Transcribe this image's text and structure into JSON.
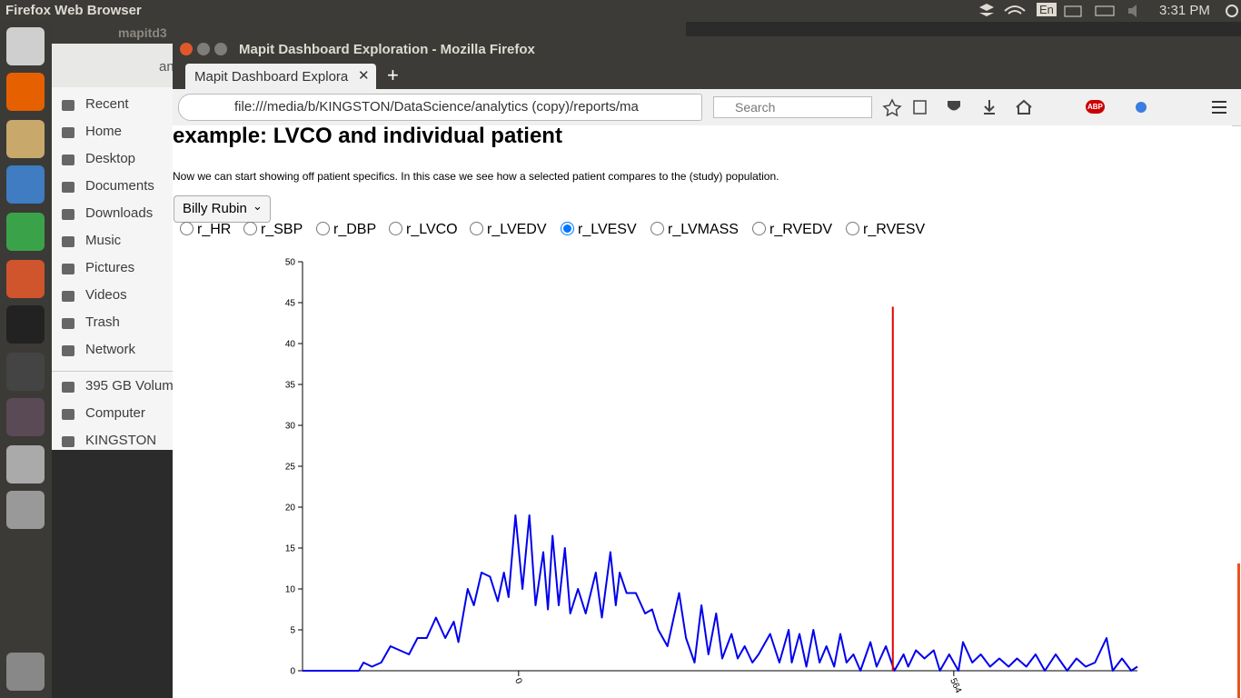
{
  "topbar": {
    "title": "Firefox Web Browser",
    "lang": "En",
    "time": "3:31 PM"
  },
  "files": {
    "title": "mapitd3",
    "path": "an",
    "places": [
      "Recent",
      "Home",
      "Desktop",
      "Documents",
      "Downloads",
      "Music",
      "Pictures",
      "Videos",
      "Trash",
      "Network"
    ],
    "devices": [
      "395 GB Volume",
      "Computer",
      "KINGSTON"
    ]
  },
  "browser": {
    "title": "Mapit Dashboard Exploration - Mozilla Firefox",
    "tab": "Mapit Dashboard Explora",
    "url": "file:///media/b/KINGSTON/DataScience/analytics (copy)/reports/ma",
    "search": "Search",
    "abp": "ABP"
  },
  "page": {
    "heading": "example: LVCO and individual patient",
    "text": "Now we can start showing off patient specifics. In this case we see how a selected patient compares to the (study) population.",
    "select": "Billy Rubin",
    "radios": [
      "r_HR",
      "r_SBP",
      "r_DBP",
      "r_LVCO",
      "r_LVEDV",
      "r_LVESV",
      "r_LVMASS",
      "r_RVEDV",
      "r_RVESV"
    ],
    "selected": 5
  },
  "chart_data": {
    "type": "line",
    "x": [
      -280,
      -207,
      -201,
      -190,
      -178,
      -166,
      -154,
      -142,
      -131,
      -119,
      -107,
      -95,
      -84,
      -78,
      -66,
      -58,
      -48,
      -37,
      -27,
      -19,
      -13,
      -4,
      5,
      14,
      22,
      32,
      38,
      44,
      52,
      60,
      67,
      77,
      87,
      100,
      108,
      119,
      126,
      131,
      140,
      152,
      164,
      173,
      181,
      193,
      208,
      217,
      228,
      237,
      246,
      256,
      264,
      276,
      284,
      293,
      303,
      311,
      326,
      338,
      350,
      354,
      364,
      373,
      382,
      390,
      399,
      409,
      417,
      425,
      434,
      443,
      456,
      464,
      476,
      487,
      499,
      505,
      515,
      526,
      538,
      546,
      558,
      570,
      576,
      588,
      599,
      611,
      623,
      635,
      646,
      658,
      670,
      682,
      696,
      711,
      723,
      735,
      747,
      762,
      770,
      782,
      794,
      802
    ],
    "series": [
      {
        "color": "#0000ee",
        "values": [
          0,
          0,
          1,
          0.5,
          1,
          3,
          2.5,
          2,
          4,
          4,
          6.5,
          4,
          6,
          3.5,
          10,
          8,
          12,
          11.5,
          8.5,
          12,
          9,
          19,
          10,
          19,
          8,
          14.5,
          7.5,
          16.5,
          8,
          15,
          7,
          10,
          7,
          12,
          6.5,
          14.5,
          8,
          12,
          9.5,
          9.5,
          7,
          7.5,
          5,
          3,
          9.5,
          4,
          1,
          8,
          2,
          7,
          1.5,
          4.5,
          1.5,
          3,
          1,
          2,
          4.5,
          1,
          5,
          1,
          4.5,
          0.5,
          5,
          1,
          3,
          0.5,
          4.5,
          1,
          2,
          0,
          3.5,
          0.5,
          3,
          0,
          2,
          0.5,
          2.5,
          1.5,
          2.5,
          0,
          2,
          0,
          3.5,
          1,
          2,
          0.5,
          1.5,
          0.5,
          1.5,
          0.5,
          2,
          0,
          2,
          0,
          1.5,
          0.5,
          1,
          4,
          0,
          1.5,
          0,
          0.5
        ]
      }
    ],
    "vline": {
      "x": 485,
      "y": 44.5,
      "color": "#e00000"
    },
    "xlim": [
      -280,
      802
    ],
    "ylim": [
      0,
      50
    ],
    "xticks": [
      0,
      564
    ],
    "yticks": [
      0,
      5,
      10,
      15,
      20,
      25,
      30,
      35,
      40,
      45,
      50
    ]
  }
}
